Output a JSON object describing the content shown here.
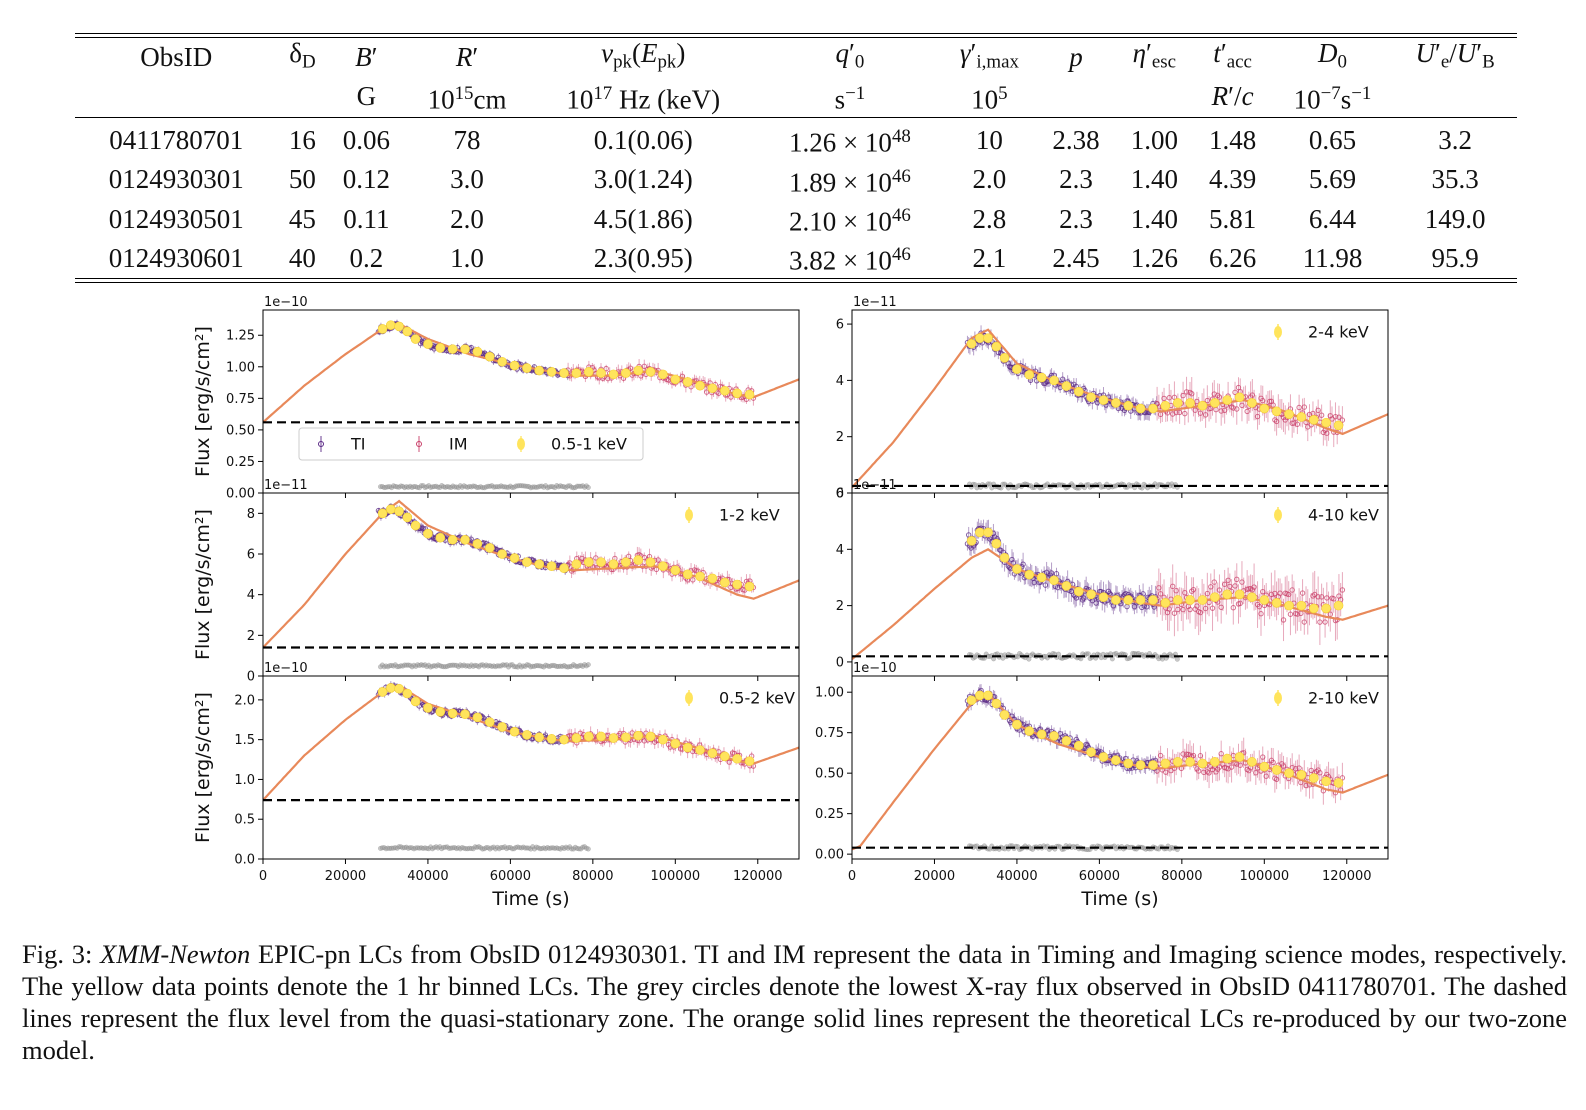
{
  "table": {
    "headers": [
      {
        "key": "obsid",
        "html": "ObsID",
        "unit": ""
      },
      {
        "key": "delta",
        "html": "δ<span class='sub'>D</span>",
        "unit": ""
      },
      {
        "key": "B",
        "html": "<i>B</i>′",
        "unit": "G"
      },
      {
        "key": "R",
        "html": "<i>R</i>′",
        "unit": "10<span class='sup'>15</span>cm"
      },
      {
        "key": "nu",
        "html": "<i>ν</i><span class='sub'>pk</span>(<i>E</i><span class='sub'>pk</span>)",
        "unit": "10<span class='sup'>17</span> Hz (keV)"
      },
      {
        "key": "q0",
        "html": "<i>q</i>′<span class='sub'>0</span>",
        "unit": "s<span class='sup'>−1</span>"
      },
      {
        "key": "gamma",
        "html": "<i>γ</i>′<span class='sub'>i,max</span>",
        "unit": "10<span class='sup'>5</span>"
      },
      {
        "key": "p",
        "html": "<i>p</i>",
        "unit": ""
      },
      {
        "key": "eta",
        "html": "<i>η</i>′<span class='sub'>esc</span>",
        "unit": ""
      },
      {
        "key": "tacc",
        "html": "<i>t</i>′<span class='sub'>acc</span>",
        "unit": "<i>R</i>′/<i>c</i>"
      },
      {
        "key": "D0",
        "html": "<i>D</i><span class='sub'>0</span>",
        "unit": "10<span class='sup'>−7</span>s<span class='sup'>−1</span>"
      },
      {
        "key": "U",
        "html": "<i>U</i>′<span class='sub'>e</span>/<i>U</i>′<span class='sub'>B</span>",
        "unit": ""
      }
    ],
    "rows": [
      {
        "obsid": "0411780701",
        "delta": "16",
        "B": "0.06",
        "R": "78",
        "nu": "0.1(0.06)",
        "q0": "1.26 × 10",
        "q0exp": "48",
        "gamma": "10",
        "p": "2.38",
        "eta": "1.00",
        "tacc": "1.48",
        "D0": "0.65",
        "U": "3.2"
      },
      {
        "obsid": "0124930301",
        "delta": "50",
        "B": "0.12",
        "R": "3.0",
        "nu": "3.0(1.24)",
        "q0": "1.89 × 10",
        "q0exp": "46",
        "gamma": "2.0",
        "p": "2.3",
        "eta": "1.40",
        "tacc": "4.39",
        "D0": "5.69",
        "U": "35.3"
      },
      {
        "obsid": "0124930501",
        "delta": "45",
        "B": "0.11",
        "R": "2.0",
        "nu": "4.5(1.86)",
        "q0": "2.10 × 10",
        "q0exp": "46",
        "gamma": "2.8",
        "p": "2.3",
        "eta": "1.40",
        "tacc": "5.81",
        "D0": "6.44",
        "U": "149.0"
      },
      {
        "obsid": "0124930601",
        "delta": "40",
        "B": "0.2",
        "R": "1.0",
        "nu": "2.3(0.95)",
        "q0": "3.82 × 10",
        "q0exp": "46",
        "gamma": "2.1",
        "p": "2.45",
        "eta": "1.26",
        "tacc": "6.26",
        "D0": "11.98",
        "U": "95.9"
      }
    ]
  },
  "chart_data": [
    {
      "id": "p05-1",
      "type": "scatter",
      "band": "0.5-1 keV",
      "multiplier": "1e−10",
      "ylabel": "Flux [erg/s/cm²]",
      "xlabel": "",
      "ylim": [
        0,
        1.45
      ],
      "yticks": [
        0,
        0.25,
        0.5,
        0.75,
        1.0,
        1.25
      ],
      "ytick_labels": [
        "0.00",
        "0.25",
        "0.50",
        "0.75",
        "1.00",
        "1.25"
      ],
      "xlim": [
        0,
        130000
      ],
      "xticks": [
        0,
        20000,
        40000,
        60000,
        80000,
        100000,
        120000
      ],
      "show_xtick_labels": false,
      "baseline": 0.56,
      "grey_level": 0.05,
      "legend": [
        {
          "name": "TI"
        },
        {
          "name": "IM"
        },
        {
          "name": "0.5-1 keV"
        }
      ],
      "legend_loc": "lower-left",
      "model": {
        "t": [
          0,
          10000,
          20000,
          29000,
          33000,
          40000,
          50000,
          60000,
          70000,
          75000,
          85000,
          95000,
          105000,
          115000,
          119000,
          130000
        ],
        "v": [
          0.56,
          0.85,
          1.1,
          1.3,
          1.34,
          1.22,
          1.1,
          1.02,
          0.96,
          0.93,
          0.93,
          0.97,
          0.88,
          0.78,
          0.76,
          0.9
        ]
      },
      "bins": {
        "t": [
          29000,
          31000,
          33000,
          35000,
          37000,
          40000,
          43000,
          46000,
          49000,
          52000,
          55000,
          58000,
          61000,
          64000,
          67000,
          70000,
          73000,
          76000,
          79000,
          82000,
          85000,
          88000,
          91000,
          94000,
          97000,
          100000,
          103000,
          106000,
          109000,
          112000,
          115000,
          118000
        ],
        "v": [
          1.3,
          1.33,
          1.32,
          1.28,
          1.22,
          1.18,
          1.15,
          1.14,
          1.14,
          1.12,
          1.08,
          1.04,
          1.01,
          0.99,
          0.97,
          0.96,
          0.95,
          0.95,
          0.96,
          0.95,
          0.94,
          0.95,
          0.97,
          0.96,
          0.94,
          0.9,
          0.88,
          0.85,
          0.83,
          0.81,
          0.79,
          0.78
        ]
      },
      "ti_range": [
        28000,
        74000
      ],
      "im_range": [
        74000,
        119000
      ],
      "ti_err": 0.03,
      "im_err": 0.05
    },
    {
      "id": "p1-2",
      "type": "scatter",
      "band": "1-2 keV",
      "multiplier": "1e−11",
      "ylabel": "Flux [erg/s/cm²]",
      "xlabel": "",
      "ylim": [
        0,
        9
      ],
      "yticks": [
        0,
        2,
        4,
        6,
        8
      ],
      "ytick_labels": [
        "0",
        "2",
        "4",
        "6",
        "8"
      ],
      "xlim": [
        0,
        130000
      ],
      "xticks": [
        0,
        20000,
        40000,
        60000,
        80000,
        100000,
        120000
      ],
      "show_xtick_labels": false,
      "baseline": 1.4,
      "grey_level": 0.5,
      "legend": [
        {
          "name": "1-2 keV"
        }
      ],
      "legend_loc": "top-right",
      "model": {
        "t": [
          0,
          10000,
          20000,
          29000,
          33000,
          40000,
          50000,
          60000,
          70000,
          75000,
          85000,
          95000,
          105000,
          115000,
          119000,
          130000
        ],
        "v": [
          1.4,
          3.5,
          6.0,
          8.0,
          8.6,
          7.4,
          6.5,
          5.8,
          5.3,
          5.2,
          5.3,
          5.4,
          4.9,
          4.0,
          3.8,
          4.7
        ]
      },
      "bins": {
        "t": [
          29000,
          31000,
          33000,
          35000,
          37000,
          40000,
          43000,
          46000,
          49000,
          52000,
          55000,
          58000,
          61000,
          64000,
          67000,
          70000,
          73000,
          76000,
          79000,
          82000,
          85000,
          88000,
          91000,
          94000,
          97000,
          100000,
          103000,
          106000,
          109000,
          112000,
          115000,
          118000
        ],
        "v": [
          8.0,
          8.2,
          8.1,
          7.8,
          7.4,
          7.0,
          6.8,
          6.7,
          6.7,
          6.5,
          6.3,
          6.0,
          5.8,
          5.6,
          5.5,
          5.4,
          5.3,
          5.5,
          5.6,
          5.6,
          5.5,
          5.6,
          5.7,
          5.6,
          5.4,
          5.2,
          5.0,
          4.9,
          4.8,
          4.6,
          4.5,
          4.4
        ]
      },
      "ti_range": [
        28000,
        74000
      ],
      "im_range": [
        74000,
        119000
      ],
      "ti_err": 0.2,
      "im_err": 0.35
    },
    {
      "id": "p05-2",
      "type": "scatter",
      "band": "0.5-2 keV",
      "multiplier": "1e−10",
      "ylabel": "Flux [erg/s/cm²]",
      "xlabel": "Time (s)",
      "ylim": [
        0,
        2.3
      ],
      "yticks": [
        0,
        0.5,
        1.0,
        1.5,
        2.0
      ],
      "ytick_labels": [
        "0.0",
        "0.5",
        "1.0",
        "1.5",
        "2.0"
      ],
      "xlim": [
        0,
        130000
      ],
      "xticks": [
        0,
        20000,
        40000,
        60000,
        80000,
        100000,
        120000
      ],
      "xtick_labels": [
        "0",
        "20000",
        "40000",
        "60000",
        "80000",
        "100000",
        "120000"
      ],
      "show_xtick_labels": true,
      "baseline": 0.74,
      "grey_level": 0.14,
      "legend": [
        {
          "name": "0.5-2 keV"
        }
      ],
      "legend_loc": "top-right",
      "model": {
        "t": [
          0,
          10000,
          20000,
          29000,
          33000,
          40000,
          50000,
          60000,
          70000,
          75000,
          85000,
          95000,
          105000,
          115000,
          119000,
          130000
        ],
        "v": [
          0.74,
          1.3,
          1.75,
          2.1,
          2.18,
          1.95,
          1.78,
          1.6,
          1.5,
          1.48,
          1.5,
          1.55,
          1.4,
          1.23,
          1.2,
          1.4
        ]
      },
      "bins": {
        "t": [
          29000,
          31000,
          33000,
          35000,
          37000,
          40000,
          43000,
          46000,
          49000,
          52000,
          55000,
          58000,
          61000,
          64000,
          67000,
          70000,
          73000,
          76000,
          79000,
          82000,
          85000,
          88000,
          91000,
          94000,
          97000,
          100000,
          103000,
          106000,
          109000,
          112000,
          115000,
          118000
        ],
        "v": [
          2.1,
          2.15,
          2.14,
          2.08,
          1.98,
          1.9,
          1.85,
          1.83,
          1.82,
          1.78,
          1.72,
          1.66,
          1.6,
          1.56,
          1.53,
          1.51,
          1.5,
          1.52,
          1.54,
          1.54,
          1.52,
          1.53,
          1.55,
          1.54,
          1.5,
          1.45,
          1.4,
          1.37,
          1.33,
          1.29,
          1.26,
          1.23
        ]
      },
      "ti_range": [
        28000,
        74000
      ],
      "im_range": [
        74000,
        119000
      ],
      "ti_err": 0.05,
      "im_err": 0.08
    },
    {
      "id": "p2-4",
      "type": "scatter",
      "band": "2-4 keV",
      "multiplier": "1e−11",
      "ylabel": "",
      "xlabel": "",
      "ylim": [
        0,
        6.5
      ],
      "yticks": [
        0,
        2,
        4,
        6
      ],
      "ytick_labels": [
        "0",
        "2",
        "4",
        "6"
      ],
      "xlim": [
        0,
        130000
      ],
      "xticks": [
        0,
        20000,
        40000,
        60000,
        80000,
        100000,
        120000
      ],
      "show_xtick_labels": false,
      "baseline": 0.25,
      "grey_level": 0.25,
      "legend": [
        {
          "name": "2-4 keV"
        }
      ],
      "legend_loc": "top-right",
      "model": {
        "t": [
          0,
          10000,
          20000,
          29000,
          33000,
          40000,
          50000,
          60000,
          70000,
          75000,
          85000,
          95000,
          105000,
          115000,
          119000,
          130000
        ],
        "v": [
          0.2,
          1.8,
          3.7,
          5.5,
          5.8,
          4.6,
          3.9,
          3.4,
          3.0,
          2.9,
          3.1,
          3.3,
          2.9,
          2.3,
          2.1,
          2.8
        ]
      },
      "bins": {
        "t": [
          29000,
          31000,
          33000,
          35000,
          37000,
          40000,
          43000,
          46000,
          49000,
          52000,
          55000,
          58000,
          61000,
          64000,
          67000,
          70000,
          73000,
          76000,
          79000,
          82000,
          85000,
          88000,
          91000,
          94000,
          97000,
          100000,
          103000,
          106000,
          109000,
          112000,
          115000,
          118000
        ],
        "v": [
          5.3,
          5.5,
          5.5,
          5.2,
          4.8,
          4.4,
          4.2,
          4.1,
          4.0,
          3.8,
          3.6,
          3.4,
          3.3,
          3.2,
          3.1,
          3.0,
          3.0,
          3.1,
          3.2,
          3.2,
          3.1,
          3.2,
          3.3,
          3.4,
          3.2,
          3.0,
          2.9,
          2.8,
          2.7,
          2.6,
          2.5,
          2.4
        ]
      },
      "ti_range": [
        28000,
        74000
      ],
      "im_range": [
        74000,
        119000
      ],
      "ti_err": 0.25,
      "im_err": 0.5
    },
    {
      "id": "p4-10",
      "type": "scatter",
      "band": "4-10 keV",
      "multiplier": "1e−11",
      "ylabel": "",
      "xlabel": "",
      "ylim": [
        -0.5,
        6
      ],
      "yticks": [
        0,
        2,
        4,
        6
      ],
      "ytick_labels": [
        "0",
        "2",
        "4",
        "6"
      ],
      "xlim": [
        0,
        130000
      ],
      "xticks": [
        0,
        20000,
        40000,
        60000,
        80000,
        100000,
        120000
      ],
      "show_xtick_labels": false,
      "baseline": 0.2,
      "grey_level": 0.2,
      "legend": [
        {
          "name": "4-10 keV"
        }
      ],
      "legend_loc": "top-right",
      "model": {
        "t": [
          0,
          10000,
          20000,
          29000,
          33000,
          40000,
          50000,
          60000,
          70000,
          75000,
          85000,
          95000,
          105000,
          115000,
          119000,
          130000
        ],
        "v": [
          0.1,
          1.3,
          2.6,
          3.7,
          4.0,
          3.3,
          2.8,
          2.4,
          2.1,
          2.0,
          2.2,
          2.3,
          2.0,
          1.6,
          1.5,
          2.0
        ]
      },
      "bins": {
        "t": [
          29000,
          31000,
          33000,
          35000,
          37000,
          40000,
          43000,
          46000,
          49000,
          52000,
          55000,
          58000,
          61000,
          64000,
          67000,
          70000,
          73000,
          76000,
          79000,
          82000,
          85000,
          88000,
          91000,
          94000,
          97000,
          100000,
          103000,
          106000,
          109000,
          112000,
          115000,
          118000
        ],
        "v": [
          4.3,
          4.6,
          4.6,
          4.2,
          3.7,
          3.3,
          3.1,
          3.0,
          2.9,
          2.7,
          2.5,
          2.4,
          2.3,
          2.2,
          2.2,
          2.2,
          2.2,
          2.1,
          2.2,
          2.2,
          2.2,
          2.3,
          2.4,
          2.4,
          2.3,
          2.2,
          2.1,
          2.0,
          2.0,
          1.9,
          1.9,
          2.0
        ]
      },
      "ti_range": [
        28000,
        74000
      ],
      "im_range": [
        74000,
        119000
      ],
      "ti_err": 0.35,
      "im_err": 0.7
    },
    {
      "id": "p2-10",
      "type": "scatter",
      "band": "2-10 keV",
      "multiplier": "1e−10",
      "ylabel": "",
      "xlabel": "Time (s)",
      "ylim": [
        -0.03,
        1.1
      ],
      "yticks": [
        0,
        0.25,
        0.5,
        0.75,
        1.0
      ],
      "ytick_labels": [
        "0.00",
        "0.25",
        "0.50",
        "0.75",
        "1.00"
      ],
      "xlim": [
        0,
        130000
      ],
      "xticks": [
        0,
        20000,
        40000,
        60000,
        80000,
        100000,
        120000
      ],
      "xtick_labels": [
        "0",
        "20000",
        "40000",
        "60000",
        "80000",
        "100000",
        "120000"
      ],
      "show_xtick_labels": true,
      "baseline": 0.04,
      "grey_level": 0.04,
      "legend": [
        {
          "name": "2-10 keV"
        }
      ],
      "legend_loc": "top-right",
      "model": {
        "t": [
          0,
          2000,
          10000,
          20000,
          29000,
          33000,
          40000,
          50000,
          60000,
          70000,
          75000,
          85000,
          95000,
          105000,
          115000,
          119000,
          130000
        ],
        "v": [
          0.03,
          0.05,
          0.32,
          0.65,
          0.93,
          0.99,
          0.8,
          0.68,
          0.6,
          0.54,
          0.53,
          0.56,
          0.58,
          0.5,
          0.4,
          0.38,
          0.49
        ]
      },
      "bins": {
        "t": [
          29000,
          31000,
          33000,
          35000,
          37000,
          40000,
          43000,
          46000,
          49000,
          52000,
          55000,
          58000,
          61000,
          64000,
          67000,
          70000,
          73000,
          76000,
          79000,
          82000,
          85000,
          88000,
          91000,
          94000,
          97000,
          100000,
          103000,
          106000,
          109000,
          112000,
          115000,
          118000
        ],
        "v": [
          0.95,
          0.98,
          0.98,
          0.93,
          0.86,
          0.8,
          0.76,
          0.74,
          0.73,
          0.7,
          0.67,
          0.63,
          0.6,
          0.58,
          0.56,
          0.55,
          0.55,
          0.56,
          0.57,
          0.57,
          0.56,
          0.57,
          0.59,
          0.6,
          0.57,
          0.54,
          0.52,
          0.5,
          0.49,
          0.47,
          0.45,
          0.44
        ]
      },
      "ti_range": [
        28000,
        74000
      ],
      "im_range": [
        74000,
        119000
      ],
      "ti_err": 0.04,
      "im_err": 0.08
    }
  ],
  "colors": {
    "ti": "#5b2a86",
    "im": "#c9406a",
    "bin": "#ffe45c",
    "model": "#e8895a",
    "grey": "#9a9a9a",
    "baseline": "#000000"
  },
  "caption": {
    "label": "Fig. 3: ",
    "mission": "XMM-Newton",
    "text": " EPIC-pn LCs from ObsID 0124930301. TI and IM represent the data in Timing and Imaging science modes, respectively. The yellow data points denote the 1 hr binned LCs. The grey circles denote the lowest X-ray flux observed in ObsID 0411780701. The dashed lines represent the flux level from the quasi-stationary zone. The orange solid lines represent the theoretical LCs re-produced by our two-zone model."
  }
}
